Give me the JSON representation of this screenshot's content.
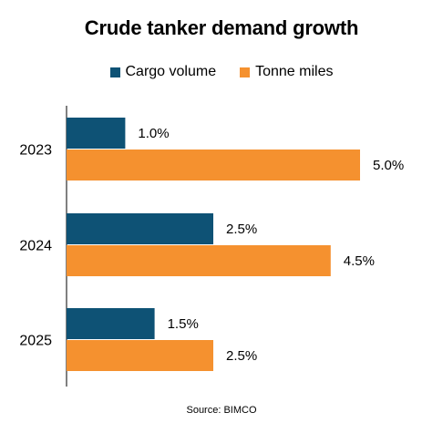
{
  "chart_data": {
    "type": "bar",
    "orientation": "horizontal",
    "title": "Crude tanker demand growth",
    "categories": [
      "2023",
      "2024",
      "2025"
    ],
    "series": [
      {
        "name": "Cargo volume",
        "color": "#0e5275",
        "values": [
          1.0,
          2.5,
          1.5
        ]
      },
      {
        "name": "Tonne miles",
        "color": "#f5912f",
        "values": [
          5.0,
          4.5,
          2.5
        ]
      }
    ],
    "data_labels": [
      [
        "1.0%",
        "2.5%",
        "1.5%"
      ],
      [
        "5.0%",
        "4.5%",
        "2.5%"
      ]
    ],
    "value_unit": "%",
    "xlim": [
      0,
      5.0
    ],
    "grid": false,
    "legend_position": "top"
  },
  "source": "Source: BIMCO"
}
